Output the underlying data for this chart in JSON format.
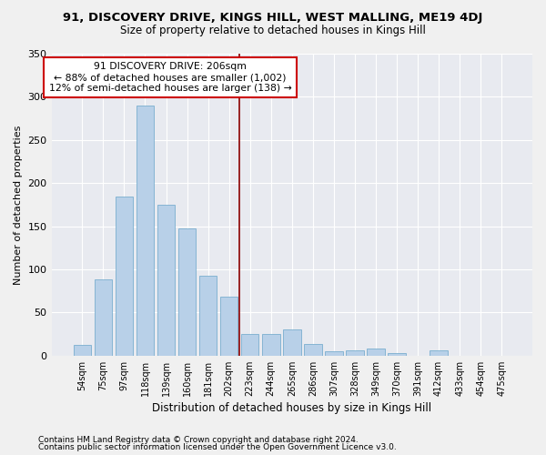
{
  "title": "91, DISCOVERY DRIVE, KINGS HILL, WEST MALLING, ME19 4DJ",
  "subtitle": "Size of property relative to detached houses in Kings Hill",
  "xlabel": "Distribution of detached houses by size in Kings Hill",
  "ylabel": "Number of detached properties",
  "footer_line1": "Contains HM Land Registry data © Crown copyright and database right 2024.",
  "footer_line2": "Contains public sector information licensed under the Open Government Licence v3.0.",
  "bar_labels": [
    "54sqm",
    "75sqm",
    "97sqm",
    "118sqm",
    "139sqm",
    "160sqm",
    "181sqm",
    "202sqm",
    "223sqm",
    "244sqm",
    "265sqm",
    "286sqm",
    "307sqm",
    "328sqm",
    "349sqm",
    "370sqm",
    "391sqm",
    "412sqm",
    "433sqm",
    "454sqm",
    "475sqm"
  ],
  "bar_values": [
    12,
    88,
    184,
    290,
    175,
    148,
    93,
    68,
    25,
    25,
    30,
    13,
    5,
    6,
    8,
    3,
    0,
    6,
    0,
    0,
    0
  ],
  "bar_color": "#b8d0e8",
  "bar_edge_color": "#7aaecf",
  "bg_color": "#e8eaf0",
  "grid_color": "#ffffff",
  "fig_bg_color": "#f0f0f0",
  "vline_x_index": 7,
  "vline_color": "#8b0000",
  "annotation_text": "91 DISCOVERY DRIVE: 206sqm\n← 88% of detached houses are smaller (1,002)\n12% of semi-detached houses are larger (138) →",
  "annotation_box_edgecolor": "#cc0000",
  "ylim": [
    0,
    350
  ],
  "yticks": [
    0,
    50,
    100,
    150,
    200,
    250,
    300,
    350
  ],
  "title_fontsize": 9.5,
  "subtitle_fontsize": 8.5
}
